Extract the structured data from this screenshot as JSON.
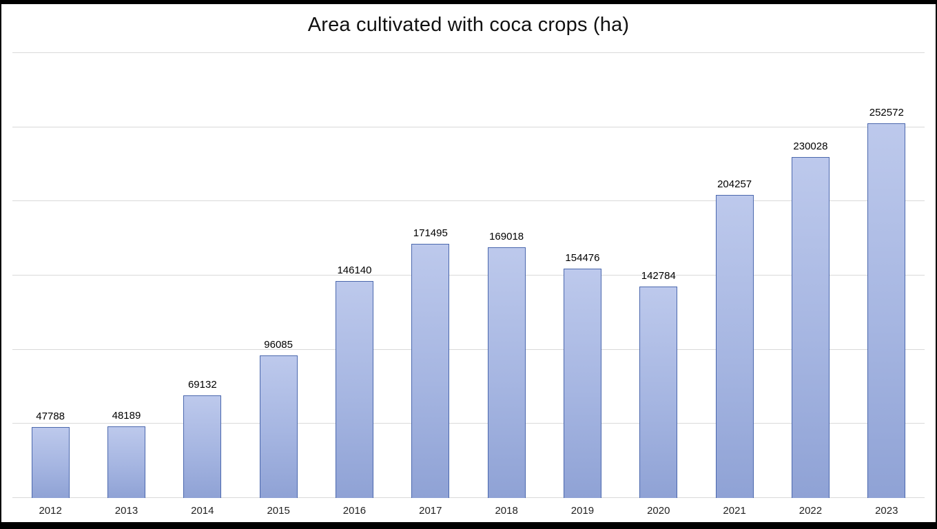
{
  "title": "Area cultivated with coca crops (ha)",
  "chart_data": {
    "type": "bar",
    "title": "Area cultivated with coca crops (ha)",
    "categories": [
      "2012",
      "2013",
      "2014",
      "2015",
      "2016",
      "2017",
      "2018",
      "2019",
      "2020",
      "2021",
      "2022",
      "2023"
    ],
    "values": [
      47788,
      48189,
      69132,
      96085,
      146140,
      171495,
      169018,
      154476,
      142784,
      204257,
      230028,
      252572
    ],
    "data_labels": [
      "47788",
      "48189",
      "69132",
      "96085",
      "146140",
      "171495",
      "169018",
      "154476",
      "142784",
      "204257",
      "230028",
      "252572"
    ],
    "xlabel": "",
    "ylabel": "",
    "ylim": [
      0,
      300000
    ],
    "gridline_interval": 50000,
    "grid": true,
    "legend": "none",
    "colors": {
      "bar_fill_top": "#bdc9ec",
      "bar_fill_bottom": "#8fa2d5",
      "bar_border": "#4a67ad",
      "gridline": "#d9d9d9",
      "background": "#ffffff",
      "frame": "#000000",
      "text": "#000000"
    }
  }
}
